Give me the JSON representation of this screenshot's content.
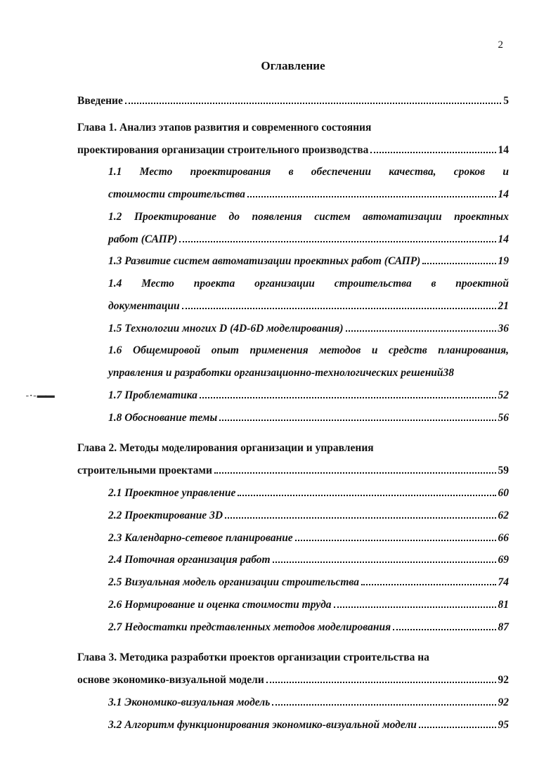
{
  "page_number": "2",
  "title": "Оглавление",
  "entries": [
    {
      "kind": "line",
      "bold": true,
      "label": "Введение",
      "page": "5"
    },
    {
      "kind": "chapter-open",
      "text": "Глава 1. Анализ этапов развития и современного состояния"
    },
    {
      "kind": "line",
      "bold": true,
      "label": "проектирования организации строительного производства",
      "page": "14"
    },
    {
      "kind": "sub-justify",
      "text": "1.1 Место проектирования в обеспечении качества, сроков и"
    },
    {
      "kind": "sub-line",
      "label": "стоимости строительства",
      "page": "14"
    },
    {
      "kind": "sub-justify",
      "text": "1.2 Проектирование до появления систем автоматизации проектных"
    },
    {
      "kind": "sub-line",
      "label": "работ (САПР)",
      "page": "14"
    },
    {
      "kind": "sub-line",
      "label": "1.3 Развитие систем автоматизации проектных работ (САПР)",
      "page": "19"
    },
    {
      "kind": "sub-justify",
      "text": "1.4 Место проекта организации строительства в проектной"
    },
    {
      "kind": "sub-line",
      "label": "документации",
      "page": "21"
    },
    {
      "kind": "sub-line",
      "label": "1.5 Технологии многих D (4D-6D моделирования)",
      "page": "36"
    },
    {
      "kind": "sub-justify",
      "text": "1.6 Общемировой опыт применения методов и средств планирования,"
    },
    {
      "kind": "sub-nolead",
      "label": "управления и разработки организационно-технологических решений",
      "page": "38"
    },
    {
      "kind": "sub-line",
      "label": "1.7 Проблематика",
      "page": "52"
    },
    {
      "kind": "sub-line",
      "label": "1.8 Обоснование темы",
      "page": "56"
    },
    {
      "kind": "gap"
    },
    {
      "kind": "chapter-open",
      "text": "Глава 2. Методы моделирования организации и управления"
    },
    {
      "kind": "line",
      "bold": true,
      "label": "строительными проектами",
      "page": "59"
    },
    {
      "kind": "sub-line",
      "label": "2.1 Проектное управление",
      "page": "60"
    },
    {
      "kind": "sub-line",
      "label": "2.2 Проектирование 3D",
      "page": "62"
    },
    {
      "kind": "sub-line",
      "label": "2.3 Календарно-сетевое планирование",
      "page": "66"
    },
    {
      "kind": "sub-line",
      "label": "2.4 Поточная организация работ",
      "page": "69"
    },
    {
      "kind": "sub-line",
      "label": "2.5 Визуальная модель организации строительства",
      "page": "74"
    },
    {
      "kind": "sub-line",
      "label": "2.6 Нормирование и оценка стоимости труда",
      "page": "81"
    },
    {
      "kind": "sub-line",
      "label": "2.7 Недостатки представленных методов моделирования",
      "page": "87"
    },
    {
      "kind": "gap"
    },
    {
      "kind": "chapter-open",
      "text": "Глава 3. Методика разработки проектов организации строительства на"
    },
    {
      "kind": "line",
      "bold": true,
      "label": "основе экономико-визуальной модели",
      "page": "92"
    },
    {
      "kind": "sub-line",
      "label": "3.1 Экономико-визуальная модель",
      "page": "92"
    },
    {
      "kind": "sub-line",
      "label": "3.2 Алгоритм функционирования экономико-визуальной модели",
      "page": "95"
    }
  ],
  "smudge": "- · - ▬▬"
}
